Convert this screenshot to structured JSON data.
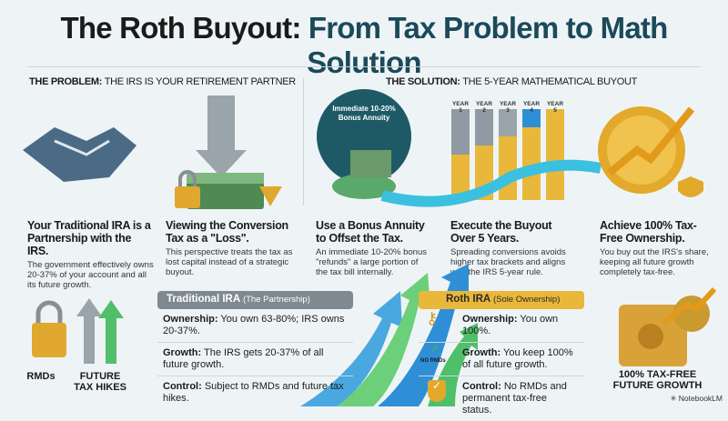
{
  "title": {
    "part1": "The Roth Buyout:",
    "part2": "From Tax Problem to Math Solution"
  },
  "problem": {
    "label": "THE PROBLEM:",
    "text": "THE IRS IS YOUR RETIREMENT PARTNER",
    "cols": [
      {
        "heading": "Your Traditional IRA is a Partnership with the IRS.",
        "body": "The government effectively owns 20-37% of your account and all its future growth."
      },
      {
        "heading": "Viewing the Conversion Tax as a \"Loss\".",
        "body": "This perspective treats the tax as lost capital instead of a strategic buyout."
      }
    ]
  },
  "solution": {
    "label": "THE SOLUTION:",
    "text": "THE 5-YEAR MATHEMATICAL BUYOUT",
    "badge": "Immediate 10-20% Bonus Annuity",
    "years": [
      "YEAR 1",
      "YEAR 2",
      "YEAR 3",
      "YEAR 4",
      "YEAR 5"
    ],
    "cols": [
      {
        "heading": "Use a Bonus Annuity to Offset the Tax.",
        "body": "An immediate 10-20% bonus \"refunds\" a large portion of the tax bill internally."
      },
      {
        "heading": "Execute the Buyout Over 5 Years.",
        "body": "Spreading conversions avoids higher tax brackets and aligns with the IRS 5-year rule."
      },
      {
        "heading": "Achieve 100% Tax-Free Ownership.",
        "body": "You buy out the IRS's share, keeping all future growth completely tax-free."
      }
    ]
  },
  "bottom": {
    "rmds": "RMDs",
    "hikes": "FUTURE TAX HIKES",
    "growth": "100% TAX-FREE FUTURE GROWTH",
    "no_rmds": "NO RMDs"
  },
  "traditional": {
    "title": "Traditional IRA",
    "sub": "(The Partnership)",
    "rows": [
      {
        "k": "Ownership:",
        "v": "You own 63-80%; IRS owns 20-37%."
      },
      {
        "k": "Growth:",
        "v": "The IRS gets 20-37% of all future growth."
      },
      {
        "k": "Control:",
        "v": "Subject to RMDs and future tax hikes."
      }
    ]
  },
  "roth": {
    "title": "Roth IRA",
    "sub": "(Sole Ownership)",
    "rows": [
      {
        "k": "Ownership:",
        "v": "You own 100%."
      },
      {
        "k": "Growth:",
        "v": "You keep 100% of all future growth."
      },
      {
        "k": "Control:",
        "v": "No RMDs and permanent tax-free status."
      }
    ]
  },
  "brand": "NotebookLM",
  "colors": {
    "teal": "#1b4a5a",
    "gold": "#e9b73a",
    "blue": "#2f8fd6",
    "green": "#3fb35a"
  }
}
